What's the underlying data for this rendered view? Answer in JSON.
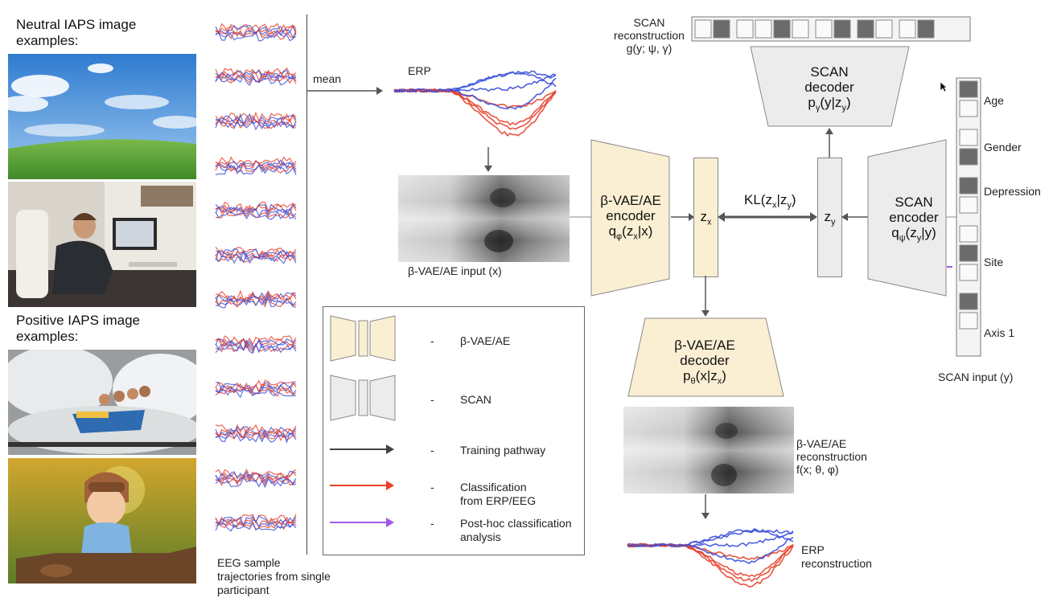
{
  "left": {
    "neutral_heading": "Neutral IAPS image examples:",
    "positive_heading": "Positive IAPS image examples:",
    "photo1": "sky-field-photo",
    "photo2": "office-man-photo",
    "photo3": "waterride-photo",
    "photo4": "baby-pilot-photo"
  },
  "eeg": {
    "caption": "EEG sample trajectories from single participant",
    "mean_label": "mean"
  },
  "erp": {
    "label": "ERP",
    "input_caption": "β-VAE/AE input (x)"
  },
  "encoder": {
    "l1": "β-VAE/AE",
    "l2": "encoder",
    "l3": "q",
    "sub": "φ",
    "l3b": "(z",
    "sub2": "x",
    "l3c": "|x)"
  },
  "zx": {
    "main": "z",
    "sub": "x"
  },
  "kl": {
    "main": "KL(z",
    "s1": "x",
    "mid": "|z",
    "s2": "y",
    "end": ")"
  },
  "zy": {
    "main": "z",
    "sub": "y"
  },
  "scan_encoder": {
    "l1": "SCAN",
    "l2": "encoder",
    "l3": "q",
    "sub": "ψ",
    "l3b": "(z",
    "sub2": "y",
    "l3c": "|y)"
  },
  "scan_decoder": {
    "l1": "SCAN",
    "l2": "decoder",
    "l3": "p",
    "sub": "γ",
    "l3b": "(y|z",
    "sub2": "y",
    "l3c": ")"
  },
  "scan_recon": {
    "l1": "SCAN",
    "l2": "reconstruction",
    "l3": "g(y; ψ, γ)"
  },
  "decoder": {
    "l1": "β-VAE/AE",
    "l2": "decoder",
    "l3": "p",
    "sub": "θ",
    "l3b": "(x|z",
    "sub2": "x",
    "l3c": ")"
  },
  "recon": {
    "l1": "β-VAE/AE",
    "l2": "reconstruction",
    "l3": "f(x; θ, φ)"
  },
  "erp_recon": {
    "l1": "ERP",
    "l2": "reconstruction"
  },
  "scan_input": {
    "caption": "SCAN input (y)",
    "labels": [
      "Age",
      "Gender",
      "Depression",
      "Site",
      "Axis 1"
    ]
  },
  "legend": {
    "dash": "-",
    "items": [
      "β-VAE/AE",
      "SCAN",
      "Training pathway",
      "Classification from ERP/EEG",
      "Post-hoc classification analysis"
    ]
  },
  "colors": {
    "vae_fill": "#fbefd3",
    "scan_fill": "#ececec",
    "red": "#e8402a",
    "blue": "#3b4fd8",
    "purple": "#a05ae8",
    "arrow": "#555555"
  }
}
